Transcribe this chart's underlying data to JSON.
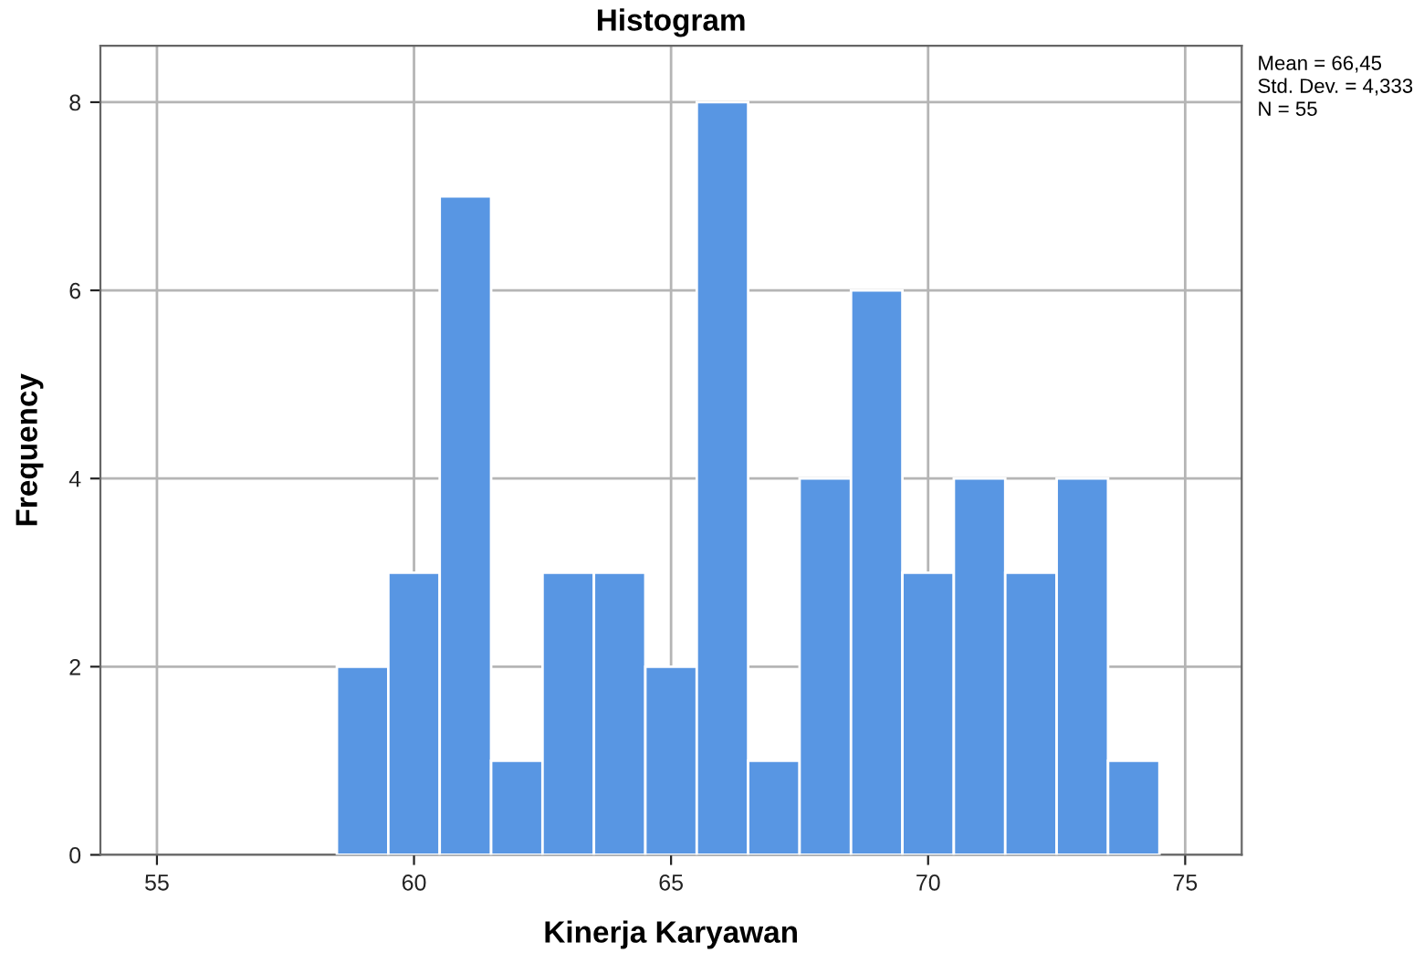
{
  "chart_data": {
    "type": "histogram",
    "title": "Histogram",
    "xlabel": "Kinerja Karyawan",
    "ylabel": "Frequency",
    "bins": [
      58.5,
      59.5,
      60.5,
      61.5,
      62.5,
      63.5,
      64.5,
      65.5,
      66.5,
      67.5,
      68.5,
      69.5,
      70.5,
      71.5,
      72.5,
      73.5,
      74.5
    ],
    "values": [
      2,
      3,
      7,
      1,
      3,
      3,
      2,
      8,
      1,
      4,
      6,
      3,
      4,
      3,
      4,
      1
    ],
    "color": "#5896e3",
    "xlim": [
      53.9,
      76.1
    ],
    "xticks": [
      55,
      60,
      65,
      70,
      75
    ],
    "ylim": [
      0,
      8.6
    ],
    "yticks": [
      0,
      2,
      4,
      6,
      8
    ],
    "grid": true,
    "annotations": [
      "Mean = 66,45",
      "Std. Dev. = 4,333",
      "N = 55"
    ]
  }
}
